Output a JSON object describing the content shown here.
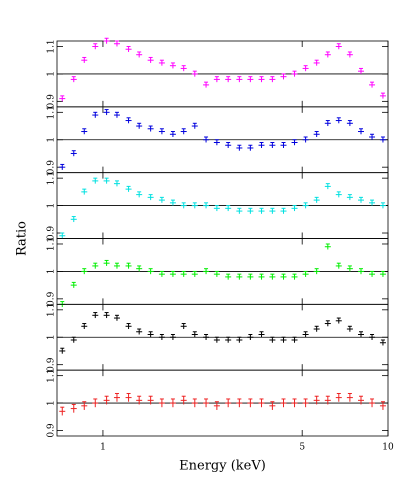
{
  "chart_data": [
    {
      "type": "errorbar",
      "color": "#ff00ff",
      "xlog": true,
      "xlim": [
        0.69,
        10
      ],
      "xticks": [
        1,
        5,
        10
      ],
      "ylim": [
        0.88,
        1.12
      ],
      "yticks": [
        0.9,
        1,
        1.1
      ],
      "hline": 1,
      "yerr": 0.01,
      "x": [
        0.72,
        0.79,
        0.86,
        0.94,
        1.03,
        1.12,
        1.23,
        1.34,
        1.47,
        1.61,
        1.76,
        1.92,
        2.1,
        2.3,
        2.51,
        2.75,
        3.01,
        3.29,
        3.6,
        3.93,
        4.3,
        4.7,
        5.14,
        5.62,
        6.15,
        6.72,
        7.35,
        8.04,
        8.79,
        9.6
      ],
      "values": [
        0.91,
        0.98,
        1.05,
        1.1,
        1.12,
        1.11,
        1.09,
        1.07,
        1.05,
        1.04,
        1.03,
        1.02,
        1.0,
        0.96,
        0.98,
        0.98,
        0.98,
        0.98,
        0.98,
        0.98,
        0.99,
        1.0,
        1.02,
        1.04,
        1.07,
        1.1,
        1.07,
        1.01,
        0.96,
        0.92
      ]
    },
    {
      "type": "errorbar",
      "color": "#0000dd",
      "xlog": true,
      "xlim": [
        0.69,
        10
      ],
      "xticks": [
        1,
        5,
        10
      ],
      "ylim": [
        0.88,
        1.12
      ],
      "yticks": [
        0.9,
        1,
        1.1
      ],
      "hline": 1,
      "yerr": 0.01,
      "x": [
        0.72,
        0.79,
        0.86,
        0.94,
        1.03,
        1.12,
        1.23,
        1.34,
        1.47,
        1.61,
        1.76,
        1.92,
        2.1,
        2.3,
        2.51,
        2.75,
        3.01,
        3.29,
        3.6,
        3.93,
        4.3,
        4.7,
        5.14,
        5.62,
        6.15,
        6.72,
        7.35,
        8.04,
        8.79,
        9.6
      ],
      "values": [
        0.9,
        0.95,
        1.03,
        1.09,
        1.1,
        1.09,
        1.07,
        1.05,
        1.04,
        1.03,
        1.02,
        1.03,
        1.05,
        1.0,
        0.99,
        0.98,
        0.97,
        0.97,
        0.98,
        0.98,
        0.98,
        0.99,
        1.0,
        1.02,
        1.06,
        1.07,
        1.06,
        1.03,
        1.01,
        1.0
      ]
    },
    {
      "type": "errorbar",
      "color": "#00e0e0",
      "xlog": true,
      "xlim": [
        0.69,
        10
      ],
      "xticks": [
        1,
        5,
        10
      ],
      "ylim": [
        0.88,
        1.12
      ],
      "yticks": [
        0.9,
        1,
        1.1
      ],
      "hline": 1,
      "yerr": 0.01,
      "x": [
        0.72,
        0.79,
        0.86,
        0.94,
        1.03,
        1.12,
        1.23,
        1.34,
        1.47,
        1.61,
        1.76,
        1.92,
        2.1,
        2.3,
        2.51,
        2.75,
        3.01,
        3.29,
        3.6,
        3.93,
        4.3,
        4.7,
        5.14,
        5.62,
        6.15,
        6.72,
        7.35,
        8.04,
        8.79,
        9.6
      ],
      "values": [
        0.89,
        0.95,
        1.05,
        1.09,
        1.09,
        1.08,
        1.06,
        1.04,
        1.03,
        1.02,
        1.01,
        1.0,
        1.0,
        1.0,
        0.99,
        0.99,
        0.98,
        0.98,
        0.98,
        0.98,
        0.98,
        0.99,
        1.0,
        1.02,
        1.07,
        1.04,
        1.03,
        1.02,
        1.01,
        1.0
      ]
    },
    {
      "type": "errorbar",
      "color": "#00ee00",
      "xlog": true,
      "xlim": [
        0.69,
        10
      ],
      "xticks": [
        1,
        5,
        10
      ],
      "ylim": [
        0.88,
        1.12
      ],
      "yticks": [
        0.9,
        1,
        1.1
      ],
      "hline": 1,
      "yerr": 0.01,
      "x": [
        0.72,
        0.79,
        0.86,
        0.94,
        1.03,
        1.12,
        1.23,
        1.34,
        1.47,
        1.61,
        1.76,
        1.92,
        2.1,
        2.3,
        2.51,
        2.75,
        3.01,
        3.29,
        3.6,
        3.93,
        4.3,
        4.7,
        5.14,
        5.62,
        6.15,
        6.72,
        7.35,
        8.04,
        8.79,
        9.6
      ],
      "values": [
        0.88,
        0.95,
        1.0,
        1.02,
        1.03,
        1.02,
        1.02,
        1.01,
        1.0,
        0.99,
        0.99,
        0.99,
        0.99,
        1.0,
        0.99,
        0.98,
        0.98,
        0.98,
        0.98,
        0.98,
        0.98,
        0.98,
        0.99,
        1.0,
        1.09,
        1.02,
        1.01,
        1.0,
        0.99,
        0.99
      ]
    },
    {
      "type": "errorbar",
      "color": "#000000",
      "xlog": true,
      "xlim": [
        0.69,
        10
      ],
      "xticks": [
        1,
        5,
        10
      ],
      "ylim": [
        0.88,
        1.12
      ],
      "yticks": [
        0.9,
        1,
        1.1
      ],
      "hline": 1,
      "yerr": 0.01,
      "x": [
        0.72,
        0.79,
        0.86,
        0.94,
        1.03,
        1.12,
        1.23,
        1.34,
        1.47,
        1.61,
        1.76,
        1.92,
        2.1,
        2.3,
        2.51,
        2.75,
        3.01,
        3.29,
        3.6,
        3.93,
        4.3,
        4.7,
        5.14,
        5.62,
        6.15,
        6.72,
        7.35,
        8.04,
        8.79,
        9.6
      ],
      "values": [
        0.95,
        0.99,
        1.04,
        1.08,
        1.08,
        1.07,
        1.04,
        1.02,
        1.01,
        1.0,
        1.0,
        1.04,
        1.01,
        1.0,
        0.99,
        0.99,
        0.99,
        1.0,
        1.01,
        0.99,
        0.99,
        0.99,
        1.01,
        1.03,
        1.05,
        1.06,
        1.03,
        1.01,
        1.0,
        0.98
      ]
    },
    {
      "type": "errorbar",
      "color": "#ee2222",
      "xlog": true,
      "xlim": [
        0.69,
        10
      ],
      "xticks": [
        1,
        5,
        10
      ],
      "ylim": [
        0.88,
        1.12
      ],
      "yticks": [
        0.9,
        1,
        1.1
      ],
      "hline": 1,
      "yerr": 0.015,
      "x": [
        0.72,
        0.79,
        0.86,
        0.94,
        1.03,
        1.12,
        1.23,
        1.34,
        1.47,
        1.61,
        1.76,
        1.92,
        2.1,
        2.3,
        2.51,
        2.75,
        3.01,
        3.29,
        3.6,
        3.93,
        4.3,
        4.7,
        5.14,
        5.62,
        6.15,
        6.72,
        7.35,
        8.04,
        8.79,
        9.6
      ],
      "values": [
        0.97,
        0.98,
        0.99,
        1.0,
        1.01,
        1.02,
        1.02,
        1.01,
        1.01,
        1.0,
        1.0,
        1.01,
        1.0,
        1.0,
        0.99,
        1.0,
        1.0,
        1.0,
        1.0,
        0.99,
        1.0,
        1.0,
        1.0,
        1.01,
        1.01,
        1.02,
        1.02,
        1.01,
        1.0,
        0.99
      ],
      "xlabel": "Energy (keV)",
      "ylabel": "Ratio"
    }
  ]
}
